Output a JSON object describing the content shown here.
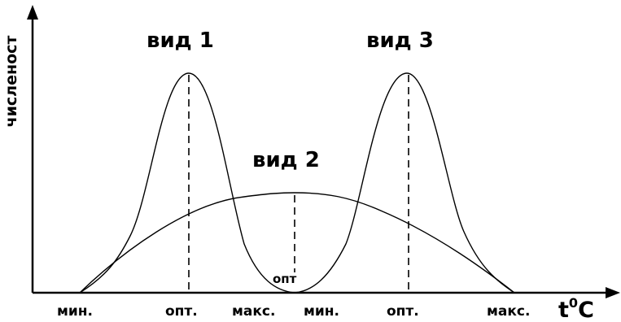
{
  "axes": {
    "y_label": "численост",
    "x_unit_base": "t",
    "x_unit_sup": "0",
    "x_unit_tail": "C"
  },
  "species": [
    {
      "label": "вид 1"
    },
    {
      "label": "вид 2"
    },
    {
      "label": "вид 3"
    }
  ],
  "x_ticks": [
    "мин.",
    "опт.",
    "макс.",
    "мин.",
    "опт.",
    "макс."
  ],
  "inner_label": "опт"
}
